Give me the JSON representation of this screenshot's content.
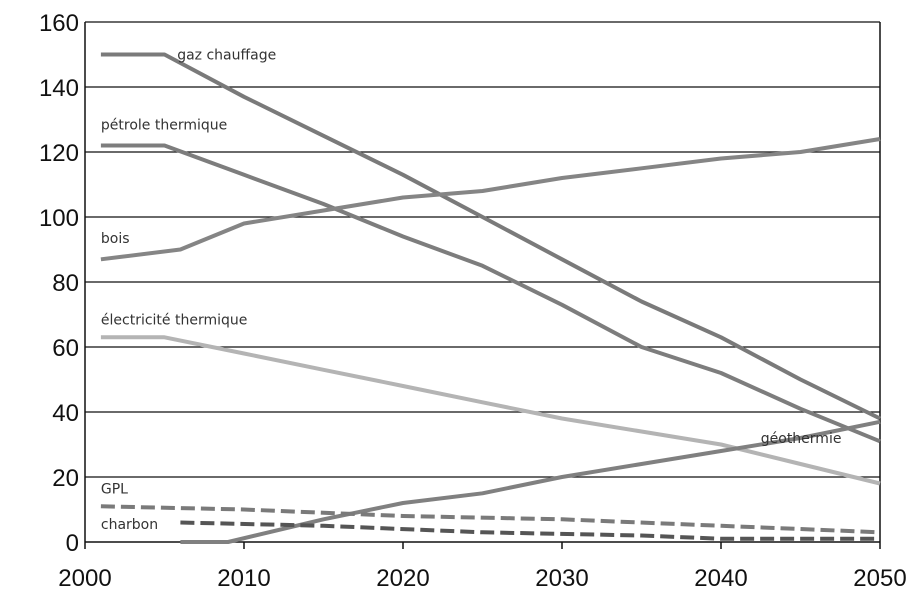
{
  "chart_data": {
    "type": "line",
    "title": "",
    "xlabel": "",
    "ylabel": "",
    "xlim": [
      2000,
      2050
    ],
    "ylim": [
      0,
      160
    ],
    "x_ticks": [
      "2000",
      "2010",
      "2020",
      "2030",
      "2040",
      "2050"
    ],
    "y_ticks": [
      "0",
      "20",
      "40",
      "60",
      "80",
      "100",
      "120",
      "140",
      "160"
    ],
    "grid": true,
    "series": [
      {
        "name": "gaz chauffage",
        "color": "#7a7a7a",
        "dashed": false,
        "points": [
          [
            2001,
            150
          ],
          [
            2005,
            150
          ],
          [
            2010,
            137
          ],
          [
            2015,
            125
          ],
          [
            2020,
            113
          ],
          [
            2025,
            100
          ],
          [
            2030,
            87
          ],
          [
            2035,
            74
          ],
          [
            2040,
            63
          ],
          [
            2045,
            50
          ],
          [
            2050,
            38
          ]
        ]
      },
      {
        "name": "pétrole thermique",
        "color": "#7d7d7d",
        "dashed": false,
        "points": [
          [
            2001,
            122
          ],
          [
            2005,
            122
          ],
          [
            2010,
            113
          ],
          [
            2015,
            104
          ],
          [
            2020,
            94
          ],
          [
            2025,
            85
          ],
          [
            2030,
            73
          ],
          [
            2035,
            60
          ],
          [
            2040,
            52
          ],
          [
            2045,
            41
          ],
          [
            2050,
            31
          ]
        ]
      },
      {
        "name": "bois",
        "color": "#858585",
        "dashed": false,
        "points": [
          [
            2001,
            87
          ],
          [
            2006,
            90
          ],
          [
            2010,
            98
          ],
          [
            2015,
            102
          ],
          [
            2020,
            106
          ],
          [
            2025,
            108
          ],
          [
            2030,
            112
          ],
          [
            2035,
            115
          ],
          [
            2040,
            118
          ],
          [
            2045,
            120
          ],
          [
            2050,
            124
          ]
        ]
      },
      {
        "name": "électricité thermique",
        "color": "#b4b4b4",
        "dashed": false,
        "points": [
          [
            2001,
            63
          ],
          [
            2005,
            63
          ],
          [
            2010,
            58
          ],
          [
            2015,
            53
          ],
          [
            2020,
            48
          ],
          [
            2025,
            43
          ],
          [
            2030,
            38
          ],
          [
            2035,
            34
          ],
          [
            2040,
            30
          ],
          [
            2045,
            24
          ],
          [
            2050,
            18
          ]
        ]
      },
      {
        "name": "géothermie",
        "color": "#808080",
        "dashed": false,
        "points": [
          [
            2006,
            0
          ],
          [
            2009,
            0
          ],
          [
            2015,
            7
          ],
          [
            2020,
            12
          ],
          [
            2025,
            15
          ],
          [
            2030,
            20
          ],
          [
            2035,
            24
          ],
          [
            2040,
            28
          ],
          [
            2045,
            32
          ],
          [
            2050,
            37
          ]
        ]
      },
      {
        "name": "GPL",
        "color": "#7a7a7a",
        "dashed": true,
        "points": [
          [
            2001,
            11
          ],
          [
            2010,
            10
          ],
          [
            2020,
            8
          ],
          [
            2030,
            7
          ],
          [
            2040,
            5
          ],
          [
            2050,
            3
          ]
        ]
      },
      {
        "name": "charbon",
        "color": "#555555",
        "dashed": true,
        "points": [
          [
            2006,
            6
          ],
          [
            2015,
            5
          ],
          [
            2025,
            3
          ],
          [
            2035,
            2
          ],
          [
            2040,
            1
          ],
          [
            2050,
            1
          ]
        ]
      }
    ],
    "annotations": [
      {
        "series": "gaz chauffage",
        "text": "gaz chauffage"
      },
      {
        "series": "pétrole thermique",
        "text": "pétrole thermique"
      },
      {
        "series": "bois",
        "text": "bois"
      },
      {
        "series": "électricité thermique",
        "text": "électricité thermique"
      },
      {
        "series": "géothermie",
        "text": "géothermie"
      },
      {
        "series": "GPL",
        "text": "GPL"
      },
      {
        "series": "charbon",
        "text": "charbon"
      }
    ]
  }
}
